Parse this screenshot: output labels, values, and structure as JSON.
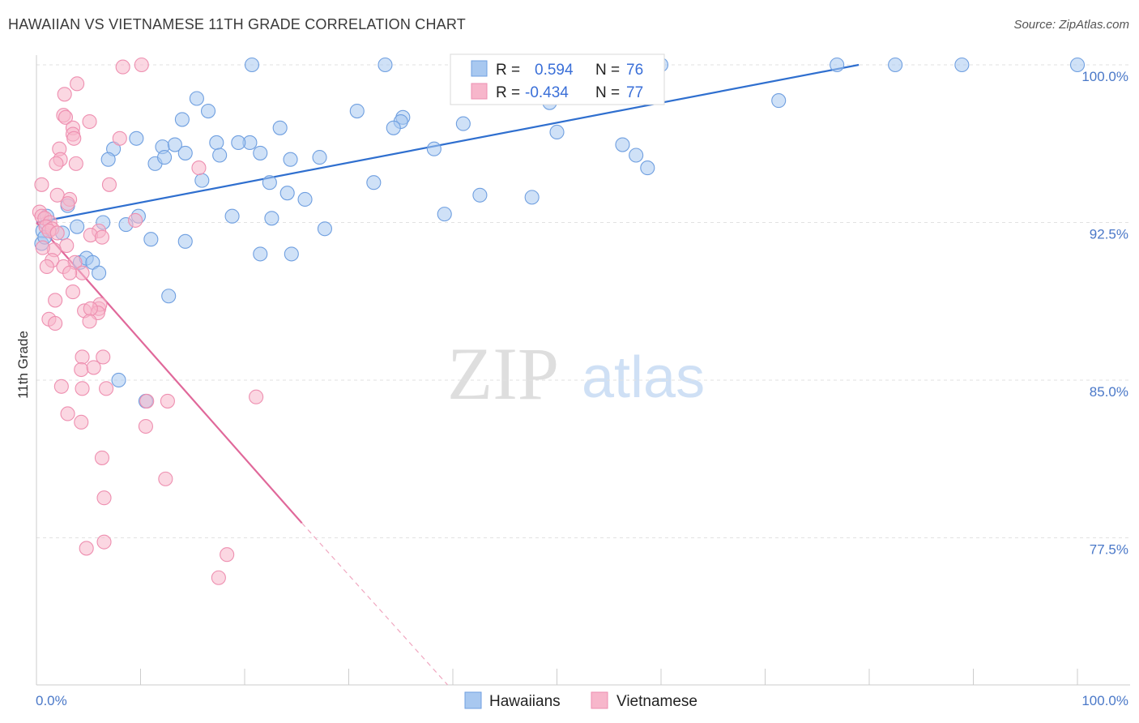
{
  "header": {
    "title": "HAWAIIAN VS VIETNAMESE 11TH GRADE CORRELATION CHART",
    "source": "Source: ZipAtlas.com"
  },
  "watermark": {
    "zip": "ZIP",
    "atlas": "atlas"
  },
  "legend": {
    "rows": [
      {
        "r_label": "R =",
        "r_value": "0.594",
        "n_label": "N =",
        "n_value": "76",
        "color": "#a8c8f0"
      },
      {
        "r_label": "R =",
        "r_value": "-0.434",
        "n_label": "N =",
        "n_value": "77",
        "color": "#f7b6cb"
      }
    ]
  },
  "bottom_legend": {
    "items": [
      "Hawaiians",
      "Vietnamese"
    ]
  },
  "chart_data": {
    "type": "scatter",
    "title": "HAWAIIAN VS VIETNAMESE 11TH GRADE CORRELATION CHART",
    "xlabel": "",
    "ylabel": "11th Grade",
    "xlim": [
      0,
      100
    ],
    "ylim": [
      70.5,
      101.5
    ],
    "x_tick_labels": [
      "0.0%",
      "100.0%"
    ],
    "y_ticks": [
      77.5,
      85.0,
      92.5,
      100.0
    ],
    "y_tick_labels": [
      "77.5%",
      "85.0%",
      "92.5%",
      "100.0%"
    ],
    "grid": true,
    "series": [
      {
        "name": "Hawaiians",
        "color": "#6f9fe0",
        "fill": "#a8c8f0",
        "r": 0.594,
        "n": 76,
        "trend": {
          "x0": 0,
          "y0": 92.5,
          "x1": 79,
          "y1": 100.0,
          "style": "solid"
        },
        "points": [
          [
            20.7,
            100.0
          ],
          [
            33.5,
            100.0
          ],
          [
            60.0,
            100.0
          ],
          [
            76.9,
            100.0
          ],
          [
            82.5,
            100.0
          ],
          [
            88.9,
            100.0
          ],
          [
            100.0,
            100.0
          ],
          [
            15.4,
            98.4
          ],
          [
            16.5,
            97.8
          ],
          [
            30.8,
            97.8
          ],
          [
            35.2,
            97.5
          ],
          [
            35.0,
            97.3
          ],
          [
            41.0,
            97.2
          ],
          [
            34.3,
            97.0
          ],
          [
            23.4,
            97.0
          ],
          [
            14.0,
            97.4
          ],
          [
            49.3,
            98.2
          ],
          [
            71.3,
            98.3
          ],
          [
            9.6,
            96.5
          ],
          [
            12.1,
            96.1
          ],
          [
            13.3,
            96.2
          ],
          [
            17.3,
            96.3
          ],
          [
            20.5,
            96.3
          ],
          [
            19.4,
            96.3
          ],
          [
            38.2,
            96.0
          ],
          [
            50.0,
            96.8
          ],
          [
            56.3,
            96.2
          ],
          [
            7.4,
            96.0
          ],
          [
            6.9,
            95.5
          ],
          [
            11.4,
            95.3
          ],
          [
            12.3,
            95.6
          ],
          [
            14.3,
            95.8
          ],
          [
            17.6,
            95.7
          ],
          [
            21.5,
            95.8
          ],
          [
            24.4,
            95.5
          ],
          [
            27.2,
            95.6
          ],
          [
            15.9,
            94.5
          ],
          [
            22.4,
            94.4
          ],
          [
            32.4,
            94.4
          ],
          [
            57.6,
            95.7
          ],
          [
            58.7,
            95.1
          ],
          [
            24.1,
            93.9
          ],
          [
            3.0,
            93.3
          ],
          [
            25.8,
            93.6
          ],
          [
            42.6,
            93.8
          ],
          [
            47.6,
            93.7
          ],
          [
            0.6,
            92.1
          ],
          [
            1.0,
            92.8
          ],
          [
            3.9,
            92.3
          ],
          [
            6.4,
            92.5
          ],
          [
            8.6,
            92.4
          ],
          [
            9.8,
            92.8
          ],
          [
            18.8,
            92.8
          ],
          [
            22.6,
            92.7
          ],
          [
            27.7,
            92.2
          ],
          [
            39.2,
            92.9
          ],
          [
            0.5,
            91.5
          ],
          [
            0.8,
            91.8
          ],
          [
            2.5,
            92.0
          ],
          [
            11.0,
            91.7
          ],
          [
            14.3,
            91.6
          ],
          [
            21.5,
            91.0
          ],
          [
            24.5,
            91.0
          ],
          [
            4.2,
            90.6
          ],
          [
            4.8,
            90.8
          ],
          [
            5.4,
            90.6
          ],
          [
            6.0,
            90.1
          ],
          [
            12.7,
            89.0
          ],
          [
            7.9,
            85.0
          ],
          [
            10.5,
            84.0
          ]
        ]
      },
      {
        "name": "Vietnamese",
        "color": "#ee8fb0",
        "fill": "#f7b6cb",
        "r": -0.434,
        "n": 77,
        "trend": {
          "x0": 0,
          "y0": 92.5,
          "x1": 25.5,
          "y1": 78.2,
          "style": "solid",
          "ext_x1": 39.5,
          "ext_y1": 70.5
        },
        "points": [
          [
            10.1,
            100.0
          ],
          [
            8.3,
            99.9
          ],
          [
            3.9,
            99.1
          ],
          [
            2.7,
            98.6
          ],
          [
            2.6,
            97.6
          ],
          [
            2.8,
            97.5
          ],
          [
            5.1,
            97.3
          ],
          [
            3.5,
            97.0
          ],
          [
            3.5,
            96.7
          ],
          [
            3.6,
            96.5
          ],
          [
            8.0,
            96.5
          ],
          [
            2.2,
            96.0
          ],
          [
            2.3,
            95.5
          ],
          [
            1.9,
            95.3
          ],
          [
            3.8,
            95.3
          ],
          [
            15.6,
            95.1
          ],
          [
            0.5,
            94.3
          ],
          [
            7.0,
            94.3
          ],
          [
            2.0,
            93.8
          ],
          [
            3.2,
            93.6
          ],
          [
            3.0,
            93.4
          ],
          [
            0.3,
            93.0
          ],
          [
            0.5,
            92.8
          ],
          [
            0.8,
            92.7
          ],
          [
            1.3,
            92.5
          ],
          [
            0.9,
            92.3
          ],
          [
            1.5,
            92.2
          ],
          [
            1.2,
            92.1
          ],
          [
            2.0,
            92.0
          ],
          [
            6.0,
            92.1
          ],
          [
            9.5,
            92.6
          ],
          [
            5.2,
            91.9
          ],
          [
            6.3,
            91.8
          ],
          [
            2.9,
            91.4
          ],
          [
            1.7,
            91.2
          ],
          [
            0.6,
            91.3
          ],
          [
            1.5,
            90.7
          ],
          [
            3.7,
            90.6
          ],
          [
            2.6,
            90.4
          ],
          [
            1.0,
            90.4
          ],
          [
            4.4,
            90.1
          ],
          [
            3.2,
            90.1
          ],
          [
            3.5,
            89.2
          ],
          [
            1.8,
            88.8
          ],
          [
            6.0,
            88.4
          ],
          [
            6.1,
            88.6
          ],
          [
            4.6,
            88.3
          ],
          [
            5.9,
            88.2
          ],
          [
            5.2,
            88.4
          ],
          [
            1.2,
            87.9
          ],
          [
            1.8,
            87.7
          ],
          [
            5.1,
            87.8
          ],
          [
            4.4,
            86.1
          ],
          [
            6.4,
            86.1
          ],
          [
            4.3,
            85.5
          ],
          [
            5.5,
            85.6
          ],
          [
            2.4,
            84.7
          ],
          [
            4.4,
            84.6
          ],
          [
            6.7,
            84.6
          ],
          [
            21.1,
            84.2
          ],
          [
            10.6,
            84.0
          ],
          [
            12.6,
            84.0
          ],
          [
            3.0,
            83.4
          ],
          [
            4.3,
            83.0
          ],
          [
            10.5,
            82.8
          ],
          [
            6.3,
            81.3
          ],
          [
            12.4,
            80.3
          ],
          [
            6.5,
            79.4
          ],
          [
            6.5,
            77.3
          ],
          [
            4.8,
            77.0
          ],
          [
            18.3,
            76.7
          ],
          [
            17.5,
            75.6
          ]
        ]
      }
    ]
  }
}
